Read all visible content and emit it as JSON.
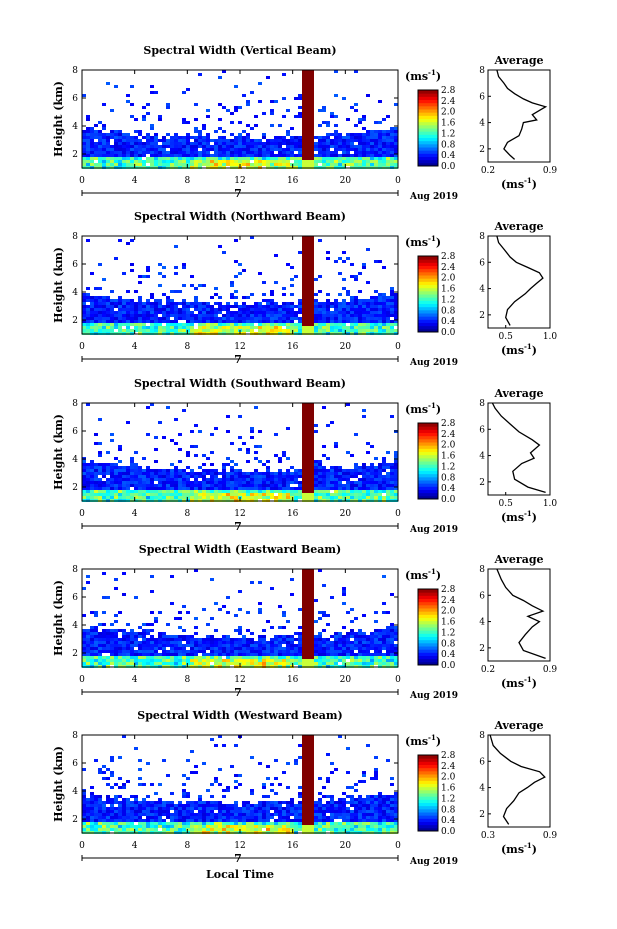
{
  "chart_data": [
    {
      "type": "heatmap",
      "title": "Spectral Width (Vertical Beam)",
      "ylabel": "Height (km)",
      "xticks": [
        "0",
        "4",
        "8",
        "12",
        "16",
        "20",
        "0"
      ],
      "yticks": [
        "2",
        "4",
        "6",
        "8"
      ],
      "date_label": "7",
      "month_label": "Aug 2019",
      "xlim": [
        0,
        24
      ],
      "ylim": [
        1,
        8
      ],
      "colorbar": {
        "unit": "(ms",
        "unit_exp": "-1",
        "unit_close": ")",
        "ticks": [
          "2.8",
          "2.4",
          "2.0",
          "1.6",
          "1.2",
          "0.8",
          "0.4",
          "0.0"
        ],
        "range": [
          0,
          2.8
        ]
      },
      "average": {
        "title": "Average",
        "xlabel": "(ms",
        "xlabel_exp": "-1",
        "xlabel_close": ")",
        "xticks": [
          "0.2",
          "0.9"
        ],
        "yticks": [
          "2",
          "4",
          "6",
          "8"
        ],
        "xlim": [
          0.2,
          0.9
        ],
        "profile": [
          [
            0.5,
            1.2
          ],
          [
            0.45,
            1.5
          ],
          [
            0.38,
            2.0
          ],
          [
            0.42,
            2.5
          ],
          [
            0.55,
            3.0
          ],
          [
            0.58,
            3.5
          ],
          [
            0.6,
            4.0
          ],
          [
            0.75,
            4.2
          ],
          [
            0.7,
            4.6
          ],
          [
            0.8,
            5.0
          ],
          [
            0.85,
            5.2
          ],
          [
            0.7,
            5.5
          ],
          [
            0.6,
            5.8
          ],
          [
            0.5,
            6.2
          ],
          [
            0.42,
            6.6
          ],
          [
            0.38,
            7.0
          ],
          [
            0.32,
            7.5
          ],
          [
            0.3,
            8.0
          ]
        ]
      }
    },
    {
      "type": "heatmap",
      "title": "Spectral Width (Northward Beam)",
      "ylabel": "Height (km)",
      "xticks": [
        "0",
        "4",
        "8",
        "12",
        "16",
        "20",
        "0"
      ],
      "yticks": [
        "2",
        "4",
        "6",
        "8"
      ],
      "date_label": "7",
      "month_label": "Aug 2019",
      "xlim": [
        0,
        24
      ],
      "ylim": [
        1,
        8
      ],
      "colorbar": {
        "unit": "(ms",
        "unit_exp": "-1",
        "unit_close": ")",
        "ticks": [
          "2.8",
          "2.4",
          "2.0",
          "1.6",
          "1.2",
          "0.8",
          "0.4",
          "0.0"
        ],
        "range": [
          0,
          2.8
        ]
      },
      "average": {
        "title": "Average",
        "xlabel": "(ms",
        "xlabel_exp": "-1",
        "xlabel_close": ")",
        "xticks": [
          "0.5",
          "1.0"
        ],
        "yticks": [
          "2",
          "4",
          "6",
          "8"
        ],
        "xlim": [
          0.3,
          1.0
        ],
        "profile": [
          [
            0.55,
            1.2
          ],
          [
            0.5,
            1.8
          ],
          [
            0.52,
            2.4
          ],
          [
            0.6,
            3.0
          ],
          [
            0.72,
            3.6
          ],
          [
            0.78,
            4.0
          ],
          [
            0.85,
            4.4
          ],
          [
            0.92,
            4.8
          ],
          [
            0.88,
            5.2
          ],
          [
            0.75,
            5.6
          ],
          [
            0.62,
            6.0
          ],
          [
            0.55,
            6.4
          ],
          [
            0.48,
            7.0
          ],
          [
            0.42,
            7.5
          ],
          [
            0.4,
            8.0
          ]
        ]
      }
    },
    {
      "type": "heatmap",
      "title": "Spectral Width (Southward Beam)",
      "ylabel": "Height (km)",
      "xticks": [
        "0",
        "4",
        "8",
        "12",
        "16",
        "20",
        "0"
      ],
      "yticks": [
        "2",
        "4",
        "6",
        "8"
      ],
      "date_label": "7",
      "month_label": "Aug 2019",
      "xlim": [
        0,
        24
      ],
      "ylim": [
        1,
        8
      ],
      "colorbar": {
        "unit": "(ms",
        "unit_exp": "-1",
        "unit_close": ")",
        "ticks": [
          "2.8",
          "2.4",
          "2.0",
          "1.6",
          "1.2",
          "0.8",
          "0.4",
          "0.0"
        ],
        "range": [
          0,
          2.8
        ]
      },
      "average": {
        "title": "Average",
        "xlabel": "(ms",
        "xlabel_exp": "-1",
        "xlabel_close": ")",
        "xticks": [
          "0.5",
          "1.0"
        ],
        "yticks": [
          "2",
          "4",
          "6",
          "8"
        ],
        "xlim": [
          0.3,
          1.0
        ],
        "profile": [
          [
            0.95,
            1.2
          ],
          [
            0.75,
            1.6
          ],
          [
            0.6,
            2.2
          ],
          [
            0.58,
            2.8
          ],
          [
            0.68,
            3.4
          ],
          [
            0.82,
            3.8
          ],
          [
            0.78,
            4.2
          ],
          [
            0.88,
            4.8
          ],
          [
            0.8,
            5.2
          ],
          [
            0.65,
            5.8
          ],
          [
            0.55,
            6.4
          ],
          [
            0.45,
            7.0
          ],
          [
            0.38,
            7.6
          ],
          [
            0.35,
            8.0
          ]
        ]
      }
    },
    {
      "type": "heatmap",
      "title": "Spectral Width (Eastward Beam)",
      "ylabel": "Height (km)",
      "xticks": [
        "0",
        "4",
        "8",
        "12",
        "16",
        "20",
        "0"
      ],
      "yticks": [
        "2",
        "4",
        "6",
        "8"
      ],
      "date_label": "7",
      "month_label": "Aug 2019",
      "xlim": [
        0,
        24
      ],
      "ylim": [
        1,
        8
      ],
      "colorbar": {
        "unit": "(ms",
        "unit_exp": "-1",
        "unit_close": ")",
        "ticks": [
          "2.8",
          "2.4",
          "2.0",
          "1.6",
          "1.2",
          "0.8",
          "0.4",
          "0.0"
        ],
        "range": [
          0,
          2.8
        ]
      },
      "average": {
        "title": "Average",
        "xlabel": "(ms",
        "xlabel_exp": "-1",
        "xlabel_close": ")",
        "xticks": [
          "0.2",
          "0.9"
        ],
        "yticks": [
          "2",
          "4",
          "6",
          "8"
        ],
        "xlim": [
          0.2,
          0.9
        ],
        "profile": [
          [
            0.85,
            1.2
          ],
          [
            0.6,
            1.8
          ],
          [
            0.55,
            2.4
          ],
          [
            0.62,
            3.0
          ],
          [
            0.7,
            3.6
          ],
          [
            0.78,
            4.0
          ],
          [
            0.65,
            4.4
          ],
          [
            0.82,
            4.8
          ],
          [
            0.7,
            5.2
          ],
          [
            0.6,
            5.6
          ],
          [
            0.48,
            6.0
          ],
          [
            0.4,
            6.6
          ],
          [
            0.35,
            7.2
          ],
          [
            0.3,
            8.0
          ]
        ]
      }
    },
    {
      "type": "heatmap",
      "title": "Spectral Width (Westward Beam)",
      "ylabel": "Height (km)",
      "xticks": [
        "0",
        "4",
        "8",
        "12",
        "16",
        "20",
        "0"
      ],
      "yticks": [
        "2",
        "4",
        "6",
        "8"
      ],
      "date_label": "7",
      "month_label": "Aug 2019",
      "xlim": [
        0,
        24
      ],
      "ylim": [
        1,
        8
      ],
      "colorbar": {
        "unit": "(ms",
        "unit_exp": "-1",
        "unit_close": ")",
        "ticks": [
          "2.8",
          "2.4",
          "2.0",
          "1.6",
          "1.2",
          "0.8",
          "0.4",
          "0.0"
        ],
        "range": [
          0,
          2.8
        ]
      },
      "average": {
        "title": "Average",
        "xlabel": "(ms",
        "xlabel_exp": "-1",
        "xlabel_close": ")",
        "xticks": [
          "0.3",
          "0.9"
        ],
        "yticks": [
          "2",
          "4",
          "6",
          "8"
        ],
        "xlim": [
          0.3,
          0.9
        ],
        "profile": [
          [
            0.5,
            1.2
          ],
          [
            0.45,
            1.8
          ],
          [
            0.48,
            2.4
          ],
          [
            0.55,
            3.0
          ],
          [
            0.6,
            3.6
          ],
          [
            0.68,
            4.0
          ],
          [
            0.75,
            4.4
          ],
          [
            0.85,
            4.8
          ],
          [
            0.8,
            5.2
          ],
          [
            0.62,
            5.6
          ],
          [
            0.52,
            6.0
          ],
          [
            0.42,
            6.6
          ],
          [
            0.35,
            7.2
          ],
          [
            0.32,
            8.0
          ]
        ]
      }
    }
  ],
  "xlabel": "Local Time"
}
